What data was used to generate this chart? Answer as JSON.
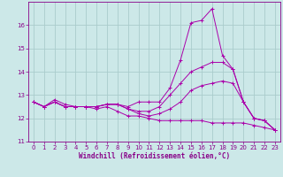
{
  "background_color": "#cce8e8",
  "grid_color": "#aacccc",
  "line_color": "#aa00aa",
  "xlabel": "Windchill (Refroidissement éolien,°C)",
  "xlim": [
    -0.5,
    23.5
  ],
  "ylim": [
    11,
    17
  ],
  "yticks": [
    11,
    12,
    13,
    14,
    15,
    16
  ],
  "xticks": [
    0,
    1,
    2,
    3,
    4,
    5,
    6,
    7,
    8,
    9,
    10,
    11,
    12,
    13,
    14,
    15,
    16,
    17,
    18,
    19,
    20,
    21,
    22,
    23
  ],
  "series": [
    {
      "x": [
        0,
        1,
        2,
        3,
        4,
        5,
        6,
        7,
        8,
        9,
        10,
        11,
        12,
        13,
        14,
        15,
        16,
        17,
        18,
        19,
        20,
        21,
        22,
        23
      ],
      "y": [
        12.7,
        12.5,
        12.7,
        12.5,
        12.5,
        12.5,
        12.5,
        12.6,
        12.6,
        12.5,
        12.7,
        12.7,
        12.7,
        13.3,
        14.5,
        16.1,
        16.2,
        16.7,
        14.7,
        14.1,
        12.7,
        12.0,
        11.9,
        11.5
      ]
    },
    {
      "x": [
        0,
        1,
        2,
        3,
        4,
        5,
        6,
        7,
        8,
        9,
        10,
        11,
        12,
        13,
        14,
        15,
        16,
        17,
        18,
        19,
        20,
        21,
        22,
        23
      ],
      "y": [
        12.7,
        12.5,
        12.7,
        12.5,
        12.5,
        12.5,
        12.5,
        12.6,
        12.6,
        12.4,
        12.3,
        12.3,
        12.5,
        13.0,
        13.5,
        14.0,
        14.2,
        14.4,
        14.4,
        14.1,
        12.7,
        12.0,
        11.9,
        11.5
      ]
    },
    {
      "x": [
        0,
        1,
        2,
        3,
        4,
        5,
        6,
        7,
        8,
        9,
        10,
        11,
        12,
        13,
        14,
        15,
        16,
        17,
        18,
        19,
        20,
        21,
        22,
        23
      ],
      "y": [
        12.7,
        12.5,
        12.8,
        12.6,
        12.5,
        12.5,
        12.5,
        12.6,
        12.6,
        12.4,
        12.2,
        12.1,
        12.2,
        12.4,
        12.7,
        13.2,
        13.4,
        13.5,
        13.6,
        13.5,
        12.7,
        12.0,
        11.9,
        11.5
      ]
    },
    {
      "x": [
        0,
        1,
        2,
        3,
        4,
        5,
        6,
        7,
        8,
        9,
        10,
        11,
        12,
        13,
        14,
        15,
        16,
        17,
        18,
        19,
        20,
        21,
        22,
        23
      ],
      "y": [
        12.7,
        12.5,
        12.7,
        12.5,
        12.5,
        12.5,
        12.4,
        12.5,
        12.3,
        12.1,
        12.1,
        12.0,
        11.9,
        11.9,
        11.9,
        11.9,
        11.9,
        11.8,
        11.8,
        11.8,
        11.8,
        11.7,
        11.6,
        11.5
      ]
    }
  ]
}
